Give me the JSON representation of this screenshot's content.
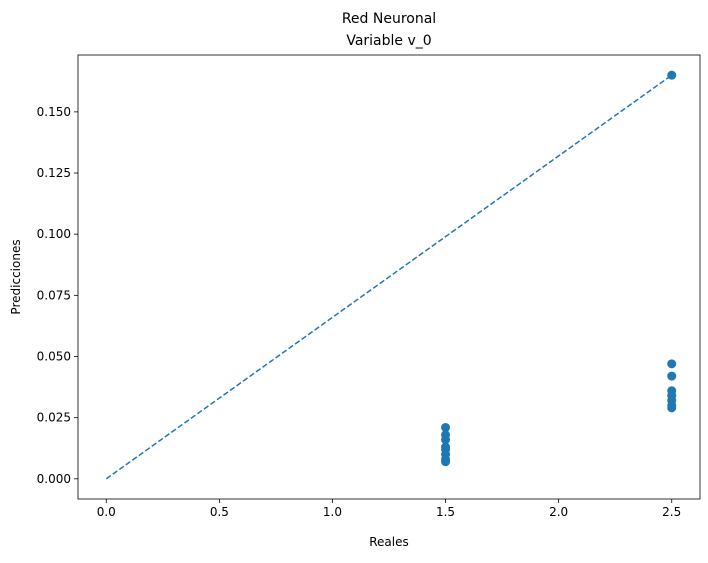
{
  "chart_data": {
    "type": "scatter",
    "title": "Red Neuronal",
    "subtitle": "Variable v_0",
    "xlabel": "Reales",
    "ylabel": "Predicciones",
    "xlim": [
      -0.125,
      2.625
    ],
    "ylim": [
      -0.00825,
      0.17325
    ],
    "xticks": [
      0.0,
      0.5,
      1.0,
      1.5,
      2.0,
      2.5
    ],
    "xtick_labels": [
      "0.0",
      "0.5",
      "1.0",
      "1.5",
      "2.0",
      "2.5"
    ],
    "yticks": [
      0.0,
      0.025,
      0.05,
      0.075,
      0.1,
      0.125,
      0.15
    ],
    "ytick_labels": [
      "0.000",
      "0.025",
      "0.050",
      "0.075",
      "0.100",
      "0.125",
      "0.150"
    ],
    "grid": false,
    "legend": "none",
    "reference_line": {
      "style": "dashed",
      "x": [
        0.0,
        2.5
      ],
      "y": [
        0.0,
        0.165
      ]
    },
    "series": [
      {
        "color": "#1f77b4",
        "points": [
          {
            "x": 1.5,
            "y": 0.021
          },
          {
            "x": 1.5,
            "y": 0.018
          },
          {
            "x": 1.5,
            "y": 0.016
          },
          {
            "x": 1.5,
            "y": 0.013
          },
          {
            "x": 1.5,
            "y": 0.012
          },
          {
            "x": 1.5,
            "y": 0.01
          },
          {
            "x": 1.5,
            "y": 0.008
          },
          {
            "x": 1.5,
            "y": 0.007
          },
          {
            "x": 2.5,
            "y": 0.165
          },
          {
            "x": 2.5,
            "y": 0.047
          },
          {
            "x": 2.5,
            "y": 0.042
          },
          {
            "x": 2.5,
            "y": 0.036
          },
          {
            "x": 2.5,
            "y": 0.034
          },
          {
            "x": 2.5,
            "y": 0.032
          },
          {
            "x": 2.5,
            "y": 0.03
          },
          {
            "x": 2.5,
            "y": 0.029
          }
        ]
      }
    ]
  }
}
